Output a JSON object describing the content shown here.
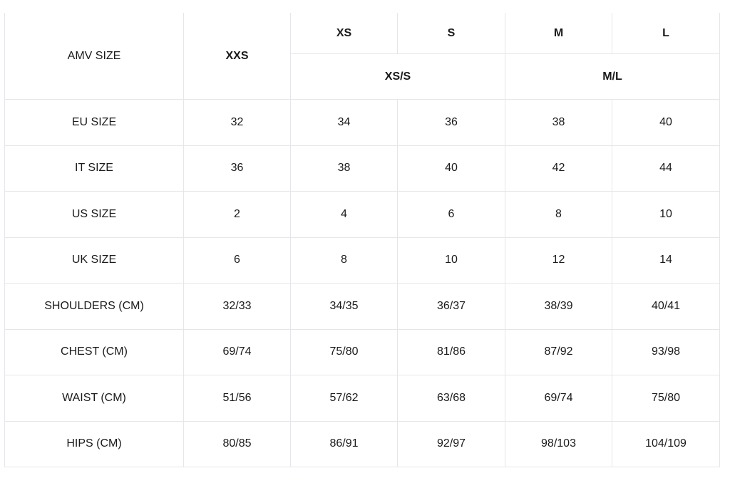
{
  "header": {
    "label": "AMV SIZE",
    "xxs": "XXS",
    "sizes": [
      "XS",
      "S",
      "M",
      "L"
    ],
    "groups": [
      "XS/S",
      "M/L"
    ]
  },
  "rows": [
    {
      "label": "EU SIZE",
      "values": [
        "32",
        "34",
        "36",
        "38",
        "40"
      ]
    },
    {
      "label": "IT SIZE",
      "values": [
        "36",
        "38",
        "40",
        "42",
        "44"
      ]
    },
    {
      "label": "US SIZE",
      "values": [
        "2",
        "4",
        "6",
        "8",
        "10"
      ]
    },
    {
      "label": "UK SIZE",
      "values": [
        "6",
        "8",
        "10",
        "12",
        "14"
      ]
    },
    {
      "label": "SHOULDERS (CM)",
      "values": [
        "32/33",
        "34/35",
        "36/37",
        "38/39",
        "40/41"
      ]
    },
    {
      "label": "CHEST (CM)",
      "values": [
        "69/74",
        "75/80",
        "81/86",
        "87/92",
        "93/98"
      ]
    },
    {
      "label": "WAIST (CM)",
      "values": [
        "51/56",
        "57/62",
        "63/68",
        "69/74",
        "75/80"
      ]
    },
    {
      "label": "HIPS (CM)",
      "values": [
        "80/85",
        "86/91",
        "92/97",
        "98/103",
        "104/109"
      ]
    }
  ]
}
